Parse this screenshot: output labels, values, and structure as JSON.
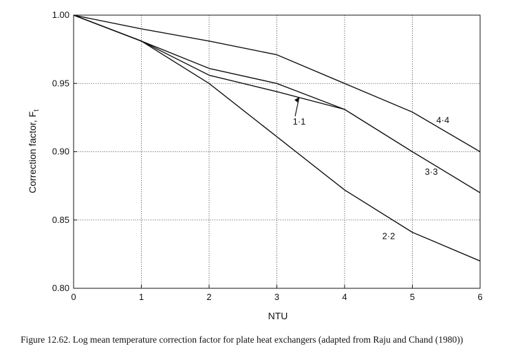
{
  "chart_data": {
    "type": "line",
    "title": "",
    "xlabel": "NTU",
    "ylabel": "Correction factor, F",
    "ylabel_sub": "t",
    "xlim": [
      0,
      6
    ],
    "ylim": [
      0.8,
      1.0
    ],
    "xticks": [
      "0",
      "1",
      "2",
      "3",
      "4",
      "5",
      "6"
    ],
    "yticks": [
      "0.80",
      "0.85",
      "0.90",
      "0.95",
      "1.00"
    ],
    "grid": "dotted",
    "series": [
      {
        "name": "1·1",
        "x": [
          0,
          1,
          2,
          3,
          4
        ],
        "y": [
          1.0,
          0.981,
          0.956,
          0.944,
          0.931
        ]
      },
      {
        "name": "2·2",
        "x": [
          0,
          1,
          2,
          3,
          4,
          5,
          6
        ],
        "y": [
          1.0,
          0.981,
          0.95,
          0.911,
          0.872,
          0.841,
          0.82
        ]
      },
      {
        "name": "3·3",
        "x": [
          0,
          1,
          2,
          3,
          4,
          5,
          6
        ],
        "y": [
          1.0,
          0.981,
          0.961,
          0.95,
          0.931,
          0.9,
          0.87
        ]
      },
      {
        "name": "4·4",
        "x": [
          0,
          1,
          2,
          3,
          4,
          5,
          6
        ],
        "y": [
          1.0,
          0.99,
          0.981,
          0.971,
          0.95,
          0.929,
          0.9
        ]
      }
    ]
  },
  "caption": "Figure 12.62.   Log mean temperature correction factor for plate heat exchangers (adapted from Raju and Chand (1980))"
}
